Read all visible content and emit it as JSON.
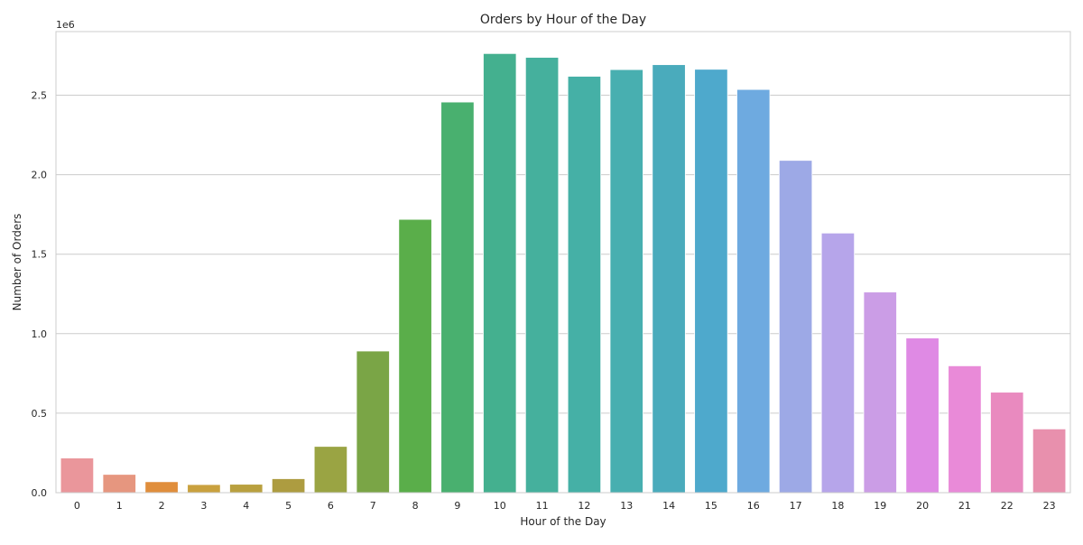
{
  "chart_data": {
    "type": "bar",
    "title": "Orders by Hour of the Day",
    "xlabel": "Hour of the Day",
    "ylabel": "Number of Orders",
    "offset_text": "1e6",
    "categories": [
      "0",
      "1",
      "2",
      "3",
      "4",
      "5",
      "6",
      "7",
      "8",
      "9",
      "10",
      "11",
      "12",
      "13",
      "14",
      "15",
      "16",
      "17",
      "18",
      "19",
      "20",
      "21",
      "22",
      "23"
    ],
    "values": [
      218000,
      115000,
      69000,
      51000,
      53000,
      88000,
      291000,
      891000,
      1719000,
      2457000,
      2762000,
      2738000,
      2619000,
      2661000,
      2692000,
      2663000,
      2536000,
      2090000,
      1633000,
      1262000,
      973000,
      798000,
      632000,
      401000
    ],
    "ylim": [
      0,
      2900000
    ],
    "yticks": [
      0,
      500000,
      1000000,
      1500000,
      2000000,
      2500000
    ],
    "ytick_labels": [
      "0.0",
      "0.5",
      "1.0",
      "1.5",
      "2.0",
      "2.5"
    ],
    "grid": true,
    "colors": [
      "#ea969b",
      "#e6967f",
      "#e08e3c",
      "#c9a13e",
      "#b9a03f",
      "#ad9c40",
      "#9aa443",
      "#7aa546",
      "#5aae4a",
      "#49b06f",
      "#44b08f",
      "#45b09d",
      "#45b0a6",
      "#48afb0",
      "#4aabbc",
      "#4ea9cc",
      "#6eaae0",
      "#9da9e6",
      "#b6a5ea",
      "#cb9de6",
      "#df8ae4",
      "#e98ad8",
      "#e98abf",
      "#e890ad"
    ]
  }
}
